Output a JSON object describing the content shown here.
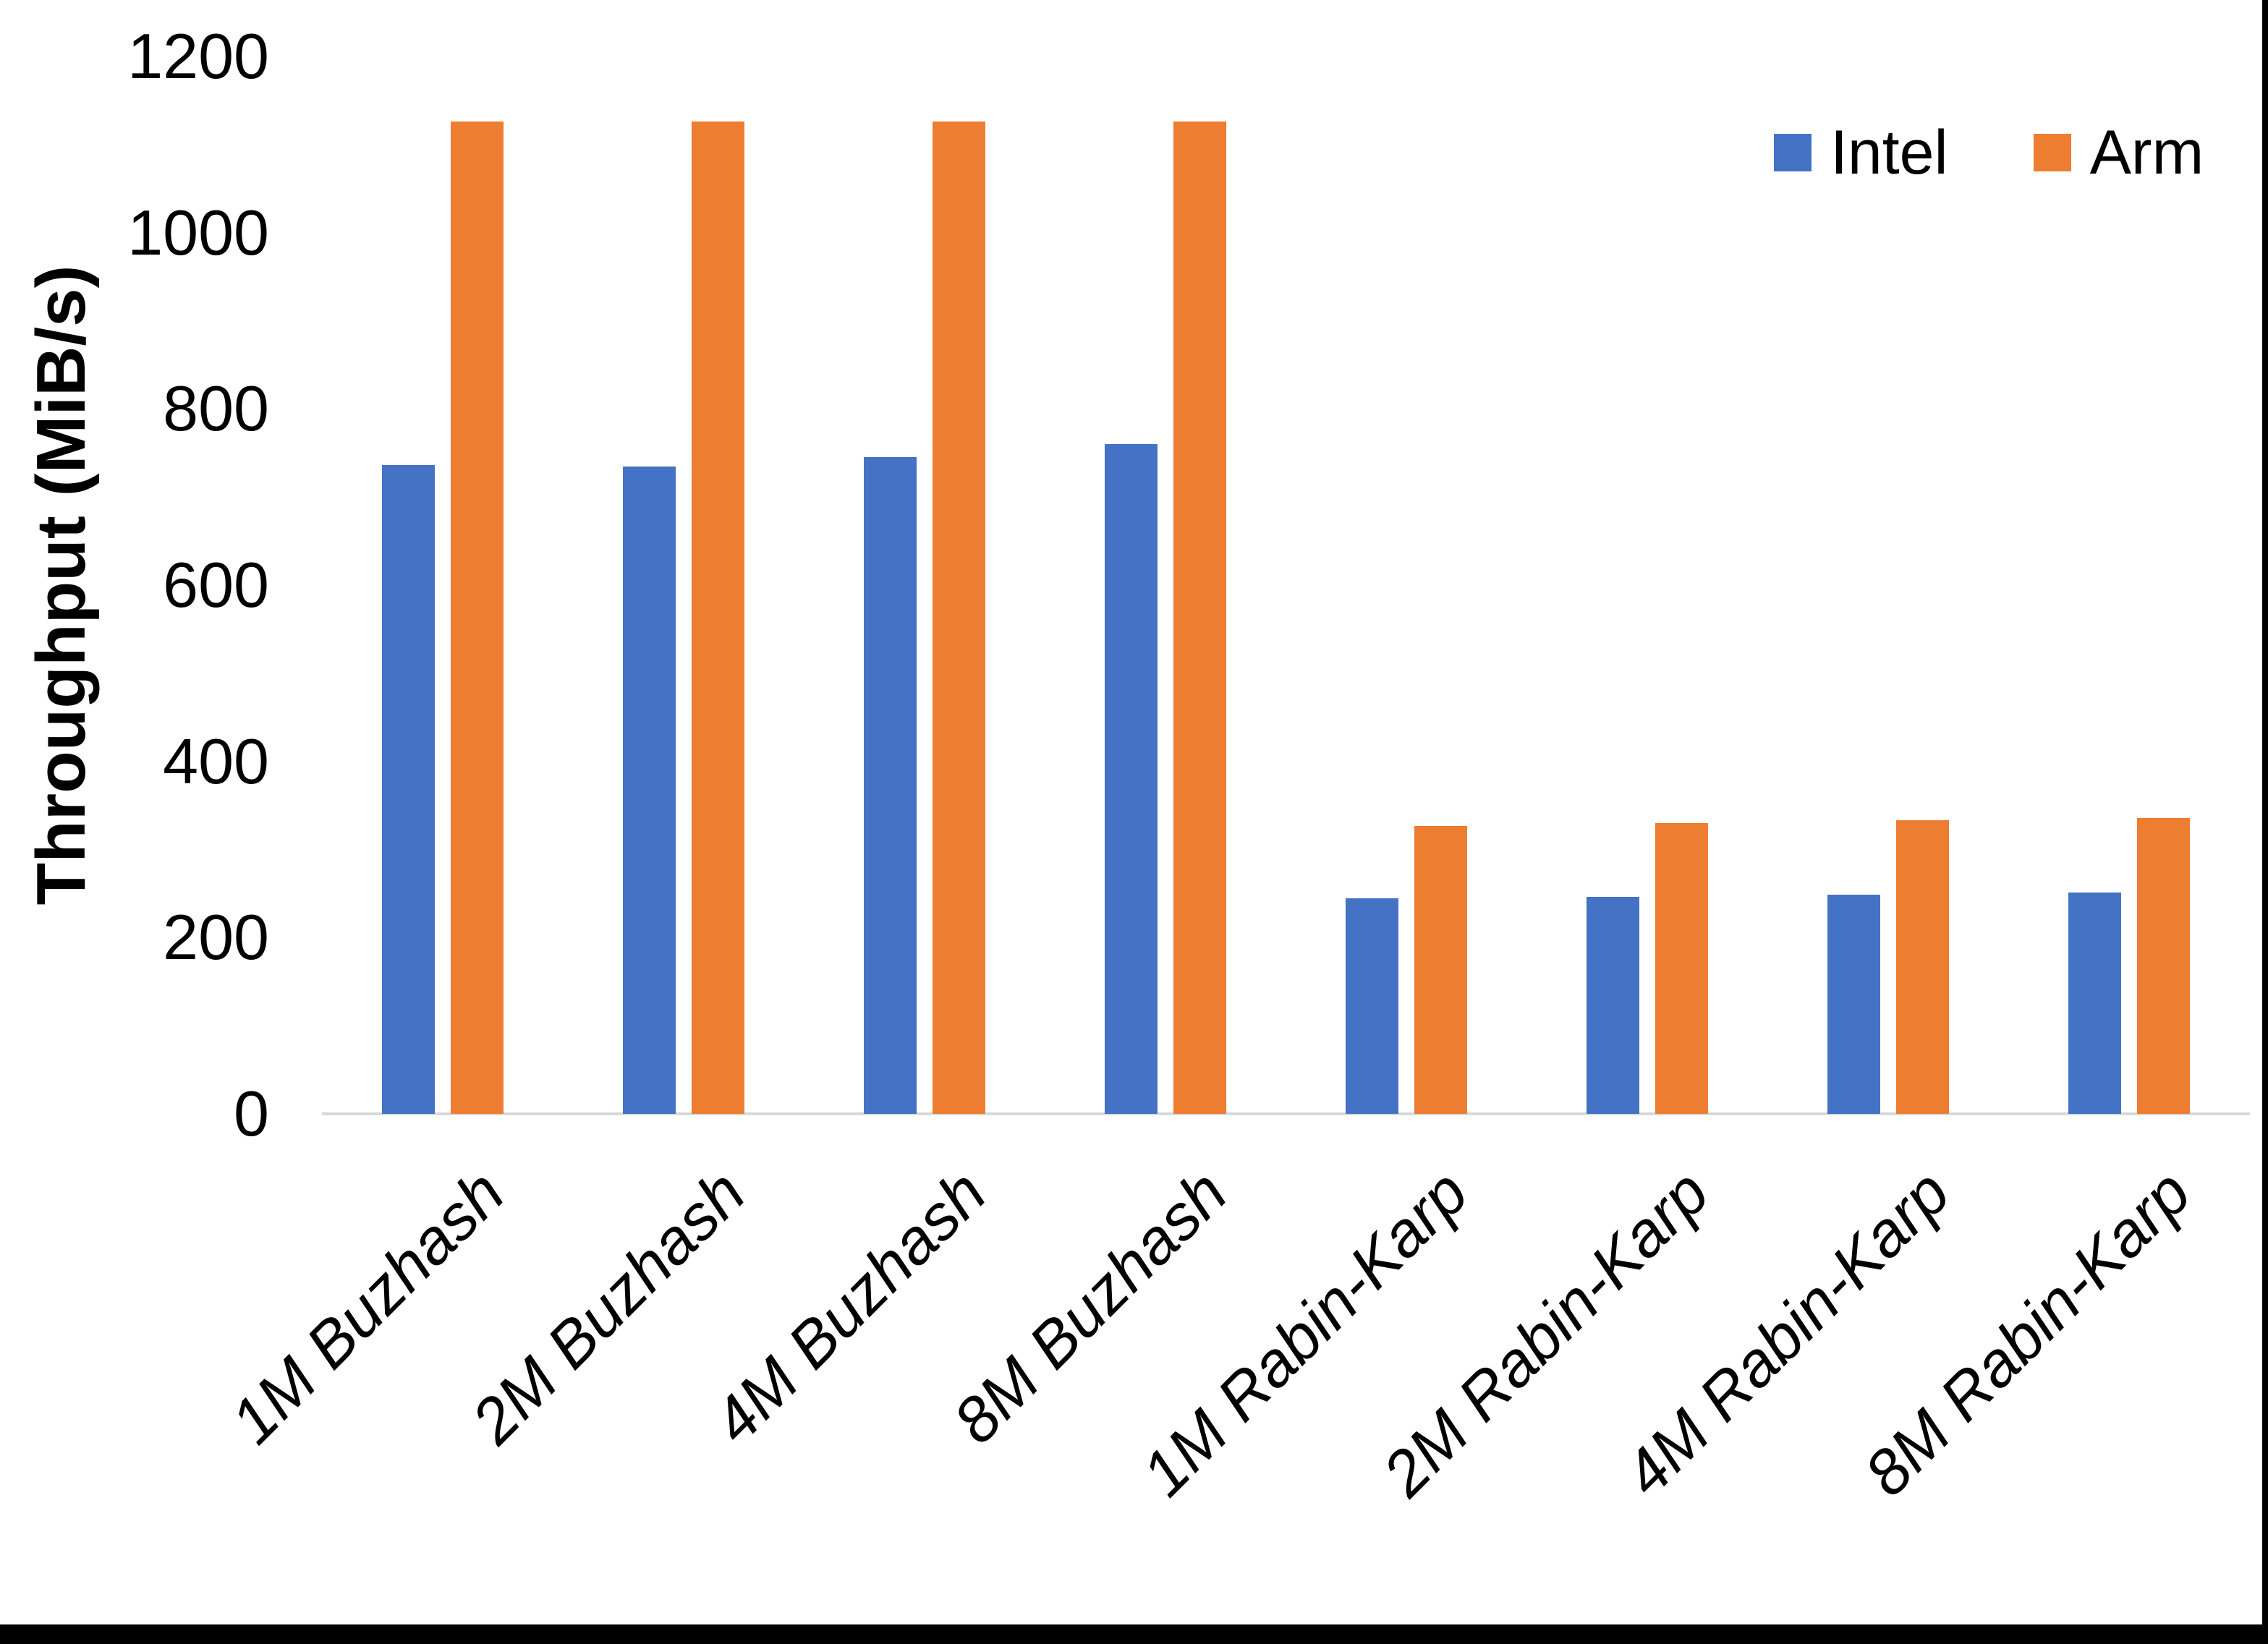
{
  "chart_data": {
    "type": "bar",
    "title": "",
    "ylabel": "Throughput (MiB/s)",
    "xlabel": "",
    "ylim": [
      0,
      1200
    ],
    "ytick_step": 200,
    "yticks": [
      1200,
      1000,
      800,
      600,
      400,
      200,
      0
    ],
    "categories": [
      "1M Buzhash",
      "2M Buzhash",
      "4M Buzhash",
      "8M Buzhash",
      "1M Rabin-Karp",
      "2M Rabin-Karp",
      "4M Rabin-Karp",
      "8M Rabin-Karp"
    ],
    "series": [
      {
        "name": "Intel",
        "color": "#4472C4",
        "values": [
          736,
          735,
          745,
          760,
          245,
          246,
          249,
          251
        ]
      },
      {
        "name": "Arm",
        "color": "#ED7D31",
        "values": [
          1126,
          1126,
          1126,
          1126,
          327,
          330,
          333,
          336
        ]
      }
    ],
    "legend_position": "top-right",
    "grid": false,
    "background": "#FFFFFF",
    "axis_line_color": "#D9D9D9",
    "text_color": "#000000"
  }
}
